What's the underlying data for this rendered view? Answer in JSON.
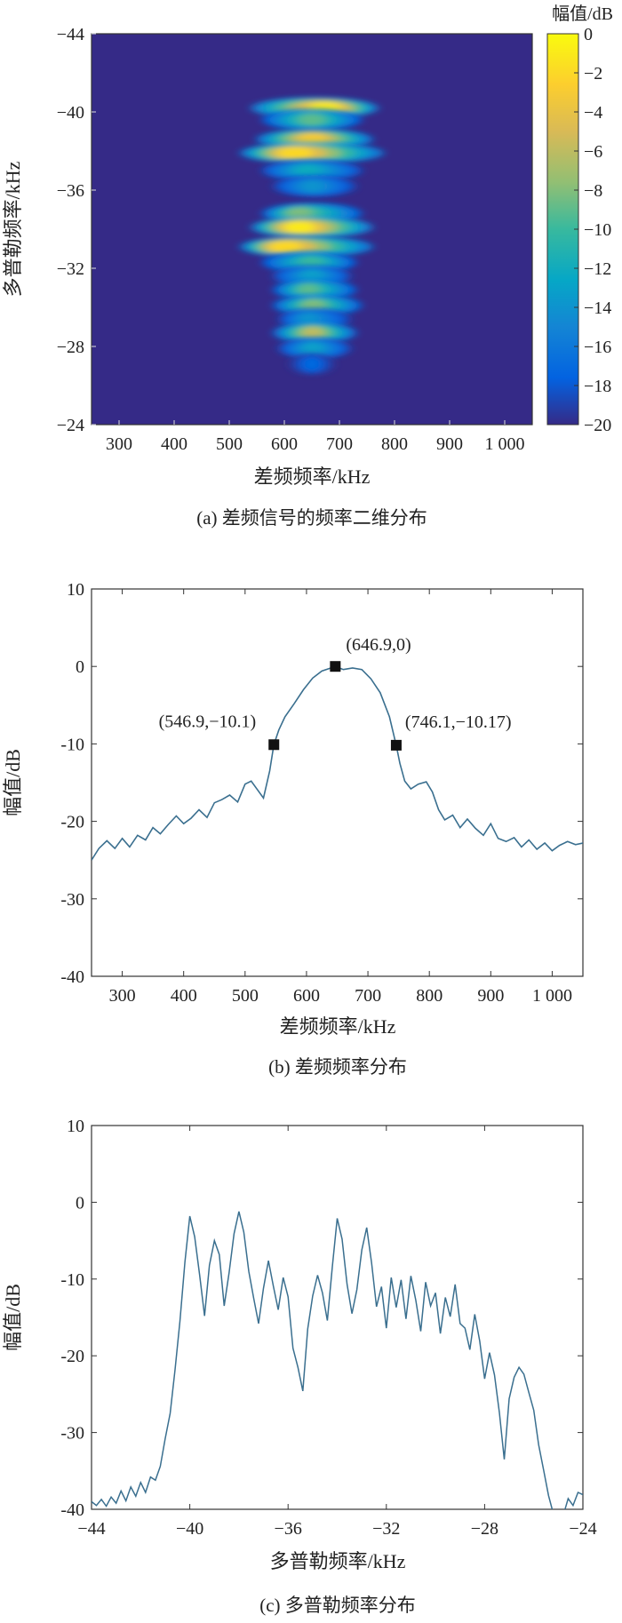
{
  "chart_data": [
    {
      "type": "heatmap",
      "caption": "(a) 差频信号的频率二维分布",
      "xlabel": "差频频率/kHz",
      "ylabel": "多普勒频率/kHz",
      "xlim": [
        250,
        1050
      ],
      "ylim": [
        -44,
        -24
      ],
      "xticks": [
        300,
        400,
        500,
        600,
        700,
        800,
        900,
        1000
      ],
      "xtick_labels": [
        "300",
        "400",
        "500",
        "600",
        "700",
        "800",
        "900",
        "1 000"
      ],
      "yticks": [
        -44,
        -40,
        -36,
        -32,
        -28,
        -24
      ],
      "ytick_labels": [
        "−44",
        "−40",
        "−36",
        "−32",
        "−28",
        "−24"
      ],
      "colorbar": {
        "title": "幅值/dB",
        "range": [
          -20,
          0
        ],
        "ticks": [
          0,
          -2,
          -4,
          -6,
          -8,
          -10,
          -12,
          -14,
          -16,
          -18,
          -20
        ],
        "tick_labels": [
          "0",
          "−2",
          "−4",
          "−6",
          "−8",
          "−10",
          "−12",
          "−14",
          "−16",
          "−18",
          "−20"
        ],
        "colormap": "parula"
      },
      "background_db": -20,
      "blobs": [
        {
          "doppler": -40.2,
          "xmin": 540,
          "xmax": 770,
          "peak_x": 680,
          "peak_db": -1
        },
        {
          "doppler": -39.6,
          "xmin": 560,
          "xmax": 740,
          "peak_x": 650,
          "peak_db": -9
        },
        {
          "doppler": -38.6,
          "xmin": 550,
          "xmax": 760,
          "peak_x": 650,
          "peak_db": -3
        },
        {
          "doppler": -37.9,
          "xmin": 520,
          "xmax": 780,
          "peak_x": 610,
          "peak_db": -2
        },
        {
          "doppler": -37.0,
          "xmin": 560,
          "xmax": 740,
          "peak_x": 640,
          "peak_db": -12
        },
        {
          "doppler": -36.2,
          "xmin": 580,
          "xmax": 730,
          "peak_x": 650,
          "peak_db": -14
        },
        {
          "doppler": -34.8,
          "xmin": 560,
          "xmax": 740,
          "peak_x": 620,
          "peak_db": -8
        },
        {
          "doppler": -34.1,
          "xmin": 540,
          "xmax": 760,
          "peak_x": 620,
          "peak_db": -1
        },
        {
          "doppler": -33.1,
          "xmin": 520,
          "xmax": 760,
          "peak_x": 590,
          "peak_db": -2
        },
        {
          "doppler": -32.3,
          "xmin": 560,
          "xmax": 730,
          "peak_x": 650,
          "peak_db": -10
        },
        {
          "doppler": -31.6,
          "xmin": 580,
          "xmax": 720,
          "peak_x": 650,
          "peak_db": -13
        },
        {
          "doppler": -30.9,
          "xmin": 580,
          "xmax": 730,
          "peak_x": 640,
          "peak_db": -9
        },
        {
          "doppler": -30.1,
          "xmin": 580,
          "xmax": 740,
          "peak_x": 650,
          "peak_db": -8
        },
        {
          "doppler": -29.4,
          "xmin": 590,
          "xmax": 720,
          "peak_x": 640,
          "peak_db": -14
        },
        {
          "doppler": -28.7,
          "xmin": 580,
          "xmax": 730,
          "peak_x": 650,
          "peak_db": -6
        },
        {
          "doppler": -27.9,
          "xmin": 590,
          "xmax": 720,
          "peak_x": 650,
          "peak_db": -13
        },
        {
          "doppler": -27.1,
          "xmin": 610,
          "xmax": 690,
          "peak_x": 650,
          "peak_db": -17
        }
      ]
    },
    {
      "type": "line",
      "caption": "(b) 差频频率分布",
      "xlabel": "差频频率/kHz",
      "ylabel": "幅值/dB",
      "xlim": [
        250,
        1050
      ],
      "ylim": [
        -40,
        10
      ],
      "xticks": [
        300,
        400,
        500,
        600,
        700,
        800,
        900,
        1000
      ],
      "xtick_labels": [
        "300",
        "400",
        "500",
        "600",
        "700",
        "800",
        "900",
        "1 000"
      ],
      "yticks": [
        10,
        0,
        -10,
        -20,
        -30,
        -40
      ],
      "ytick_labels": [
        "10",
        "0",
        "-10",
        "-20",
        "-30",
        "-40"
      ],
      "color": "#3a6f8f",
      "x": [
        250,
        262,
        275,
        288,
        300,
        312,
        325,
        338,
        350,
        362,
        375,
        388,
        400,
        412,
        425,
        438,
        450,
        462,
        475,
        488,
        500,
        510,
        520,
        530,
        540,
        546.9,
        555,
        565,
        580,
        595,
        610,
        625,
        640,
        646.9,
        660,
        675,
        690,
        705,
        720,
        735,
        746.1,
        752,
        760,
        770,
        782,
        795,
        805,
        815,
        825,
        838,
        850,
        862,
        875,
        888,
        900,
        912,
        925,
        938,
        950,
        962,
        975,
        988,
        1000,
        1012,
        1025,
        1038,
        1050
      ],
      "y": [
        -25,
        -23.5,
        -22.5,
        -23.5,
        -22.2,
        -23.3,
        -21.8,
        -22.4,
        -20.8,
        -21.6,
        -20.4,
        -19.3,
        -20.3,
        -19.6,
        -18.5,
        -19.5,
        -17.6,
        -17.2,
        -16.6,
        -17.5,
        -15.2,
        -14.8,
        -15.9,
        -17.0,
        -13.5,
        -10.1,
        -8.2,
        -6.5,
        -4.8,
        -3.0,
        -1.5,
        -0.6,
        -0.2,
        0,
        -0.4,
        -0.2,
        -0.4,
        -1.6,
        -3.4,
        -6.5,
        -10.17,
        -12.5,
        -14.8,
        -15.8,
        -15.2,
        -14.9,
        -16.2,
        -18.5,
        -19.8,
        -19.2,
        -20.8,
        -19.7,
        -20.9,
        -21.8,
        -20.3,
        -22.2,
        -22.6,
        -22.1,
        -23.3,
        -22.4,
        -23.6,
        -22.8,
        -23.8,
        -23.1,
        -22.6,
        -23.0,
        -22.8
      ],
      "markers": [
        {
          "x": 546.9,
          "y": -10.1,
          "label": "(546.9,−10.1)"
        },
        {
          "x": 646.9,
          "y": 0,
          "label": "(646.9,0)"
        },
        {
          "x": 746.1,
          "y": -10.17,
          "label": "(746.1,−10.17)"
        }
      ]
    },
    {
      "type": "line",
      "caption": "(c) 多普勒频率分布",
      "xlabel": "多普勒频率/kHz",
      "ylabel": "幅值/dB",
      "xlim": [
        -44,
        -24
      ],
      "ylim": [
        -40,
        10
      ],
      "xticks": [
        -44,
        -40,
        -36,
        -32,
        -28,
        -24
      ],
      "xtick_labels": [
        "−44",
        "−40",
        "−36",
        "−32",
        "−28",
        "−24"
      ],
      "yticks": [
        10,
        0,
        -10,
        -20,
        -30,
        -40
      ],
      "ytick_labels": [
        "10",
        "0",
        "-10",
        "-20",
        "-30",
        "-40"
      ],
      "color": "#3a6f8f",
      "x": [
        -44,
        -43.8,
        -43.6,
        -43.4,
        -43.2,
        -43,
        -42.8,
        -42.6,
        -42.4,
        -42.2,
        -42,
        -41.8,
        -41.6,
        -41.4,
        -41.2,
        -41,
        -40.8,
        -40.6,
        -40.4,
        -40.2,
        -40.0,
        -39.8,
        -39.6,
        -39.4,
        -39.2,
        -39.0,
        -38.8,
        -38.6,
        -38.4,
        -38.2,
        -38.0,
        -37.8,
        -37.6,
        -37.4,
        -37.2,
        -37.0,
        -36.8,
        -36.6,
        -36.4,
        -36.2,
        -36.0,
        -35.8,
        -35.6,
        -35.4,
        -35.2,
        -35.0,
        -34.8,
        -34.6,
        -34.4,
        -34.2,
        -34.0,
        -33.8,
        -33.6,
        -33.4,
        -33.2,
        -33.0,
        -32.8,
        -32.6,
        -32.4,
        -32.2,
        -32.0,
        -31.8,
        -31.6,
        -31.4,
        -31.2,
        -31.0,
        -30.8,
        -30.6,
        -30.4,
        -30.2,
        -30.0,
        -29.8,
        -29.6,
        -29.4,
        -29.2,
        -29.0,
        -28.8,
        -28.6,
        -28.4,
        -28.2,
        -28.0,
        -27.8,
        -27.6,
        -27.4,
        -27.2,
        -27.0,
        -26.8,
        -26.6,
        -26.4,
        -26.2,
        -26.0,
        -25.8,
        -25.6,
        -25.4,
        -25.2,
        -25.0,
        -24.8,
        -24.6,
        -24.4,
        -24.2,
        -24.0
      ],
      "y": [
        -39,
        -39.5,
        -38.7,
        -39.6,
        -38.4,
        -39.2,
        -37.6,
        -38.9,
        -37.1,
        -38.3,
        -36.5,
        -37.8,
        -35.8,
        -36.2,
        -34.4,
        -30.8,
        -27.5,
        -21.8,
        -15.5,
        -7.8,
        -1.8,
        -4.5,
        -9.5,
        -14.8,
        -8.2,
        -5.0,
        -6.8,
        -13.5,
        -9.2,
        -4.1,
        -1.2,
        -3.9,
        -9.0,
        -12.5,
        -15.8,
        -11.2,
        -7.6,
        -10.9,
        -14.0,
        -9.8,
        -12.3,
        -19.0,
        -21.5,
        -24.6,
        -16.5,
        -12.2,
        -9.5,
        -11.8,
        -15.4,
        -8.4,
        -2.1,
        -4.8,
        -10.7,
        -14.5,
        -11.4,
        -6.2,
        -3.3,
        -7.9,
        -13.6,
        -11.0,
        -16.4,
        -9.8,
        -13.7,
        -10.1,
        -15.2,
        -9.6,
        -12.8,
        -16.8,
        -10.4,
        -13.5,
        -11.8,
        -17.1,
        -12.4,
        -14.9,
        -10.7,
        -15.8,
        -16.4,
        -19.2,
        -14.6,
        -18.1,
        -23.0,
        -19.6,
        -22.5,
        -27.4,
        -33.5,
        -25.6,
        -22.8,
        -21.5,
        -22.4,
        -24.8,
        -27.1,
        -31.6,
        -34.9,
        -38.2,
        -40.6,
        -41.5,
        -40.8,
        -38.6,
        -39.5,
        -37.8,
        -38.1
      ]
    }
  ]
}
